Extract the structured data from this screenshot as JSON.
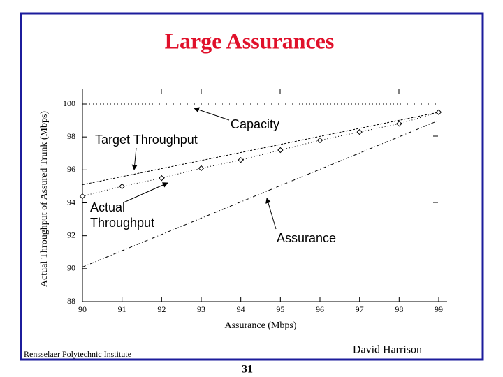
{
  "chart_data": {
    "type": "line",
    "title": "Large Assurances",
    "xlabel": "Assurance (Mbps)",
    "ylabel": "Actual Throughput of Assured Trunk (Mbps)",
    "xlim": [
      90,
      99
    ],
    "xticks": [
      90,
      91,
      92,
      93,
      94,
      95,
      96,
      97,
      98,
      99
    ],
    "ylim": [
      88,
      100
    ],
    "yticks": [
      88,
      90,
      92,
      94,
      96,
      98,
      100
    ],
    "series": [
      {
        "name": "Capacity",
        "color": "#000000",
        "dash": "1 4",
        "marker": "none",
        "x": [
          90,
          99
        ],
        "values": [
          100,
          100
        ]
      },
      {
        "name": "Target Throughput",
        "color": "#000000",
        "dash": "3 2",
        "marker": "none",
        "x": [
          90,
          99
        ],
        "values": [
          95.1,
          99.5
        ]
      },
      {
        "name": "Assurance",
        "color": "#000000",
        "dash": "5 3 1 3",
        "marker": "none",
        "x": [
          90,
          99
        ],
        "values": [
          90.1,
          99.0
        ]
      },
      {
        "name": "Actual Throughput",
        "color": "#000000",
        "dash": "1 3",
        "marker": "diamond",
        "x": [
          90,
          91,
          92,
          93,
          94,
          95,
          96,
          97,
          98,
          99
        ],
        "values": [
          94.4,
          95.0,
          95.5,
          96.1,
          96.6,
          97.2,
          97.8,
          98.3,
          98.8,
          99.5
        ]
      }
    ]
  },
  "footer": {
    "left": "Rensselaer Polytechnic Institute",
    "right": "David Harrison",
    "page": "31"
  }
}
